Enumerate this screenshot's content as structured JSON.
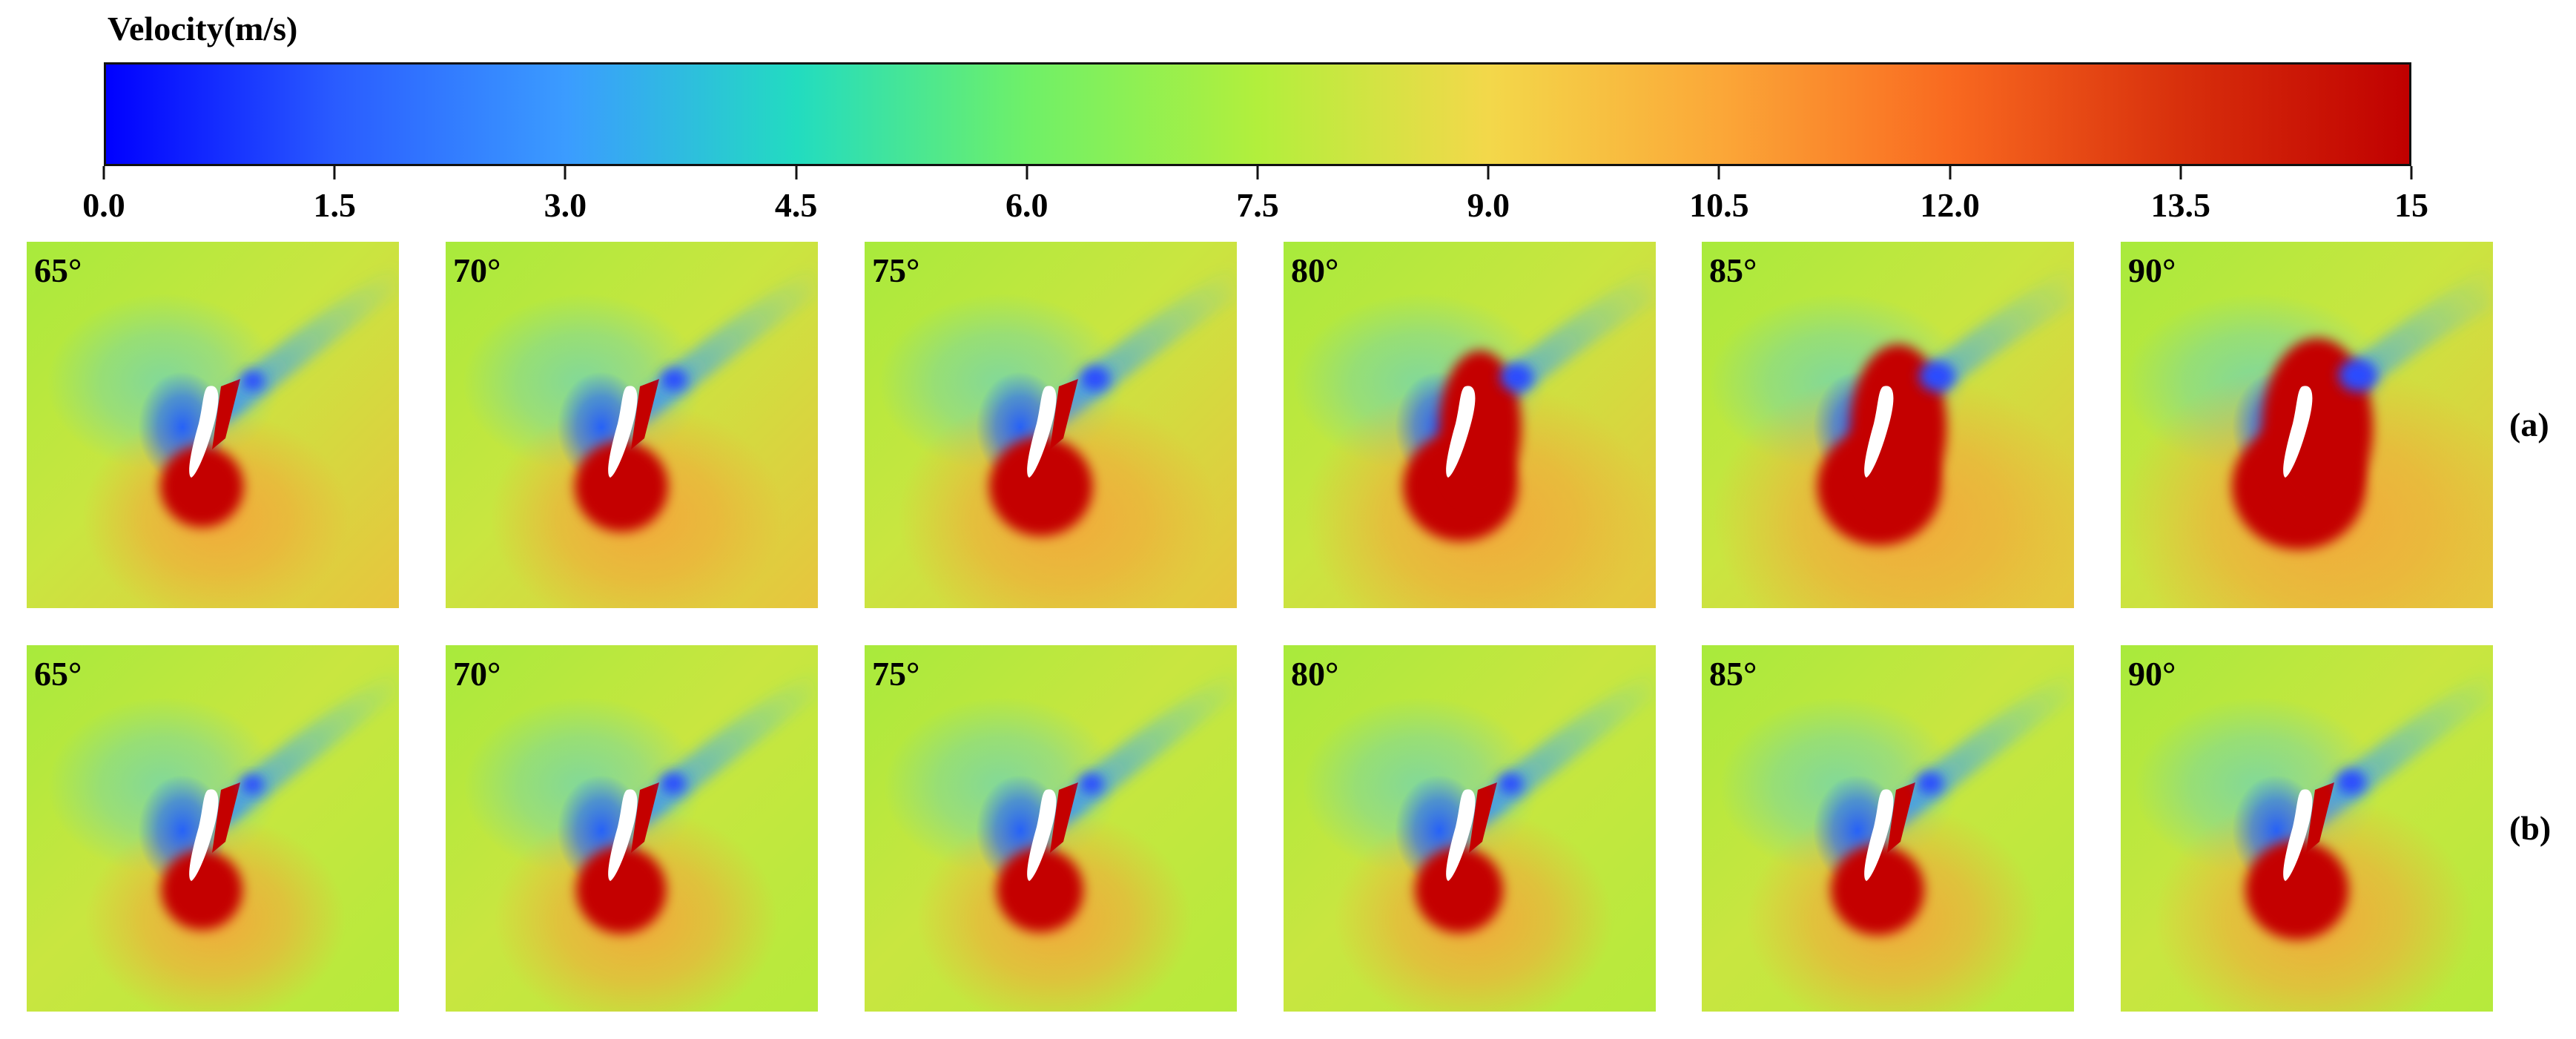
{
  "colorbar": {
    "title": "Velocity(m/s)",
    "ticks": [
      "0.0",
      "1.5",
      "3.0",
      "4.5",
      "6.0",
      "7.5",
      "9.0",
      "10.5",
      "12.0",
      "13.5",
      "15"
    ],
    "min": 0,
    "max": 15
  },
  "rows": [
    {
      "label": "(a)",
      "panels": [
        {
          "angle": "65°",
          "intensity": 0.25
        },
        {
          "angle": "70°",
          "intensity": 0.4
        },
        {
          "angle": "75°",
          "intensity": 0.55
        },
        {
          "angle": "80°",
          "intensity": 0.72
        },
        {
          "angle": "85°",
          "intensity": 0.86
        },
        {
          "angle": "90°",
          "intensity": 1.0
        }
      ]
    },
    {
      "label": "(b)",
      "panels": [
        {
          "angle": "65°",
          "intensity": 0.22
        },
        {
          "angle": "70°",
          "intensity": 0.35
        },
        {
          "angle": "75°",
          "intensity": 0.3
        },
        {
          "angle": "80°",
          "intensity": 0.32
        },
        {
          "angle": "85°",
          "intensity": 0.4
        },
        {
          "angle": "90°",
          "intensity": 0.55
        }
      ]
    }
  ],
  "colors": {
    "freestream": "#a8ea3c",
    "high": "#c40000",
    "low": "#1f5cff",
    "wake": "#38c8ff",
    "downstream": "#f4a73a"
  }
}
